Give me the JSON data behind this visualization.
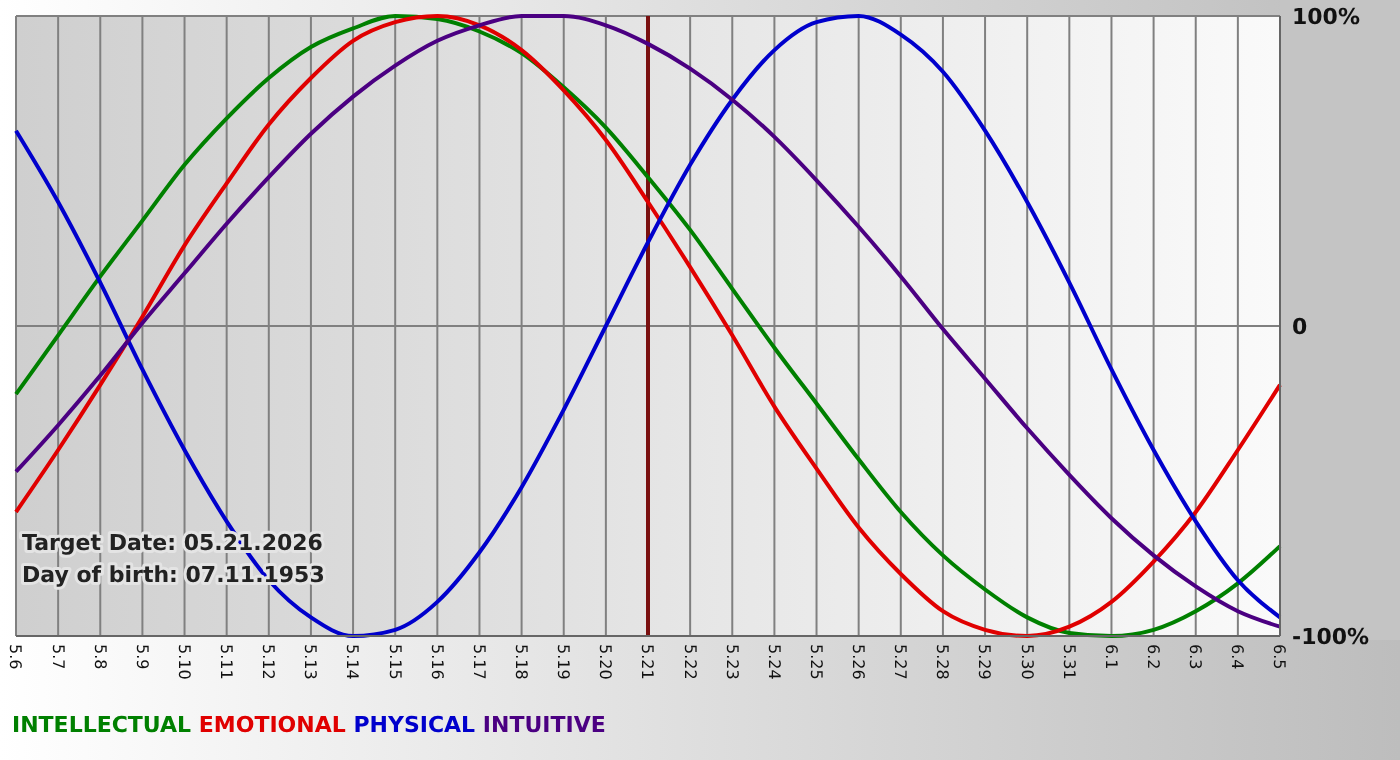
{
  "chart_data": {
    "type": "line",
    "categories": [
      "5.6",
      "5.7",
      "5.8",
      "5.9",
      "5.10",
      "5.11",
      "5.12",
      "5.13",
      "5.14",
      "5.15",
      "5.16",
      "5.17",
      "5.18",
      "5.19",
      "5.20",
      "5.21",
      "5.22",
      "5.23",
      "5.24",
      "5.25",
      "5.26",
      "5.27",
      "5.28",
      "5.29",
      "5.30",
      "5.31",
      "6.1",
      "6.2",
      "6.3",
      "6.4",
      "6.5"
    ],
    "series": [
      {
        "name": "INTELLECTUAL",
        "color": "#008000",
        "values": [
          -22,
          -3,
          16,
          34,
          52,
          67,
          80,
          90,
          96,
          100,
          99,
          95,
          88,
          77,
          64,
          48,
          31,
          12,
          -7,
          -25,
          -43,
          -60,
          -74,
          -85,
          -94,
          -99,
          -100,
          -98,
          -92,
          -83,
          -71
        ]
      },
      {
        "name": "EMOTIONAL",
        "color": "#e00000",
        "values": [
          -60,
          -40,
          -19,
          3,
          26,
          46,
          65,
          80,
          92,
          98,
          100,
          97,
          89,
          76,
          60,
          40,
          19,
          -3,
          -26,
          -46,
          -65,
          -80,
          -92,
          -98,
          -100,
          -97,
          -89,
          -76,
          -60,
          -40,
          -19
        ]
      },
      {
        "name": "PHYSICAL",
        "color": "#0000cc",
        "values": [
          63,
          40,
          14,
          -14,
          -40,
          -63,
          -82,
          -94,
          -100,
          -98,
          -89,
          -73,
          -52,
          -27,
          0,
          27,
          52,
          73,
          89,
          98,
          100,
          94,
          82,
          63,
          40,
          14,
          -14,
          -40,
          -63,
          -82,
          -94
        ]
      },
      {
        "name": "INTUITIVE",
        "color": "#4b0082",
        "values": [
          -47,
          -32,
          -16,
          1,
          17,
          33,
          48,
          62,
          74,
          84,
          92,
          97,
          100,
          100,
          97,
          91,
          83,
          73,
          61,
          47,
          32,
          16,
          -1,
          -17,
          -33,
          -48,
          -62,
          -74,
          -84,
          -92,
          -97
        ]
      }
    ],
    "ylim": [
      -100,
      100
    ],
    "yticks": [
      {
        "value": -100,
        "label": "-100%"
      },
      0,
      {
        "value": 100,
        "label": "100%"
      }
    ],
    "ref_lines": [
      {
        "axis": "x",
        "value": "5.21",
        "color": "#7a1010"
      }
    ],
    "annotations": [
      "Target Date: 05.21.2026",
      "Day of birth: 07.11.1953"
    ],
    "grid": true,
    "legend": "bottom left"
  }
}
